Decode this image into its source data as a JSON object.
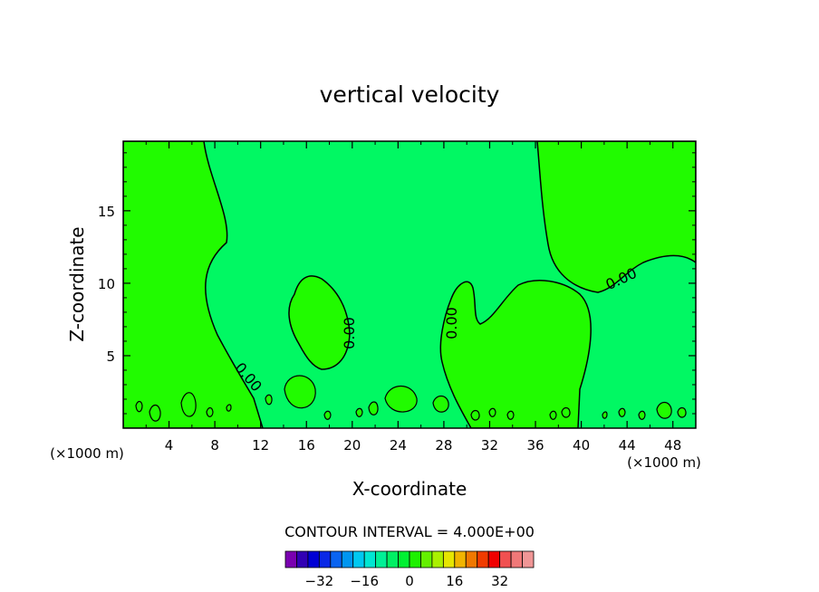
{
  "chart_data": {
    "type": "contour",
    "title": "vertical velocity",
    "xlabel": "X-coordinate",
    "ylabel": "Z-coordinate",
    "x_unit_left": "(×1000 m)",
    "x_unit_right": "(×1000 m)",
    "xlim": [
      0,
      50
    ],
    "ylim": [
      0,
      19.8
    ],
    "x_ticks": [
      4,
      8,
      12,
      16,
      20,
      24,
      28,
      32,
      36,
      40,
      44,
      48
    ],
    "y_ticks": [
      5,
      10,
      15
    ],
    "contour_labels": [
      "0.00",
      "0.00",
      "0.00",
      "0.00"
    ],
    "contour_interval_text": "CONTOUR INTERVAL = 4.000E+00",
    "colorbar_ticks": [
      -32,
      -16,
      0,
      16,
      32
    ],
    "colorbar_colors": [
      "#7a00b0",
      "#3200b4",
      "#0000d4",
      "#0a28e6",
      "#0a64f0",
      "#0096f0",
      "#00c8f0",
      "#00e6d2",
      "#00f096",
      "#00f064",
      "#00f032",
      "#1ef000",
      "#64f000",
      "#aaf000",
      "#e6e600",
      "#f0b400",
      "#f07800",
      "#f03c00",
      "#f00000",
      "#f05050",
      "#f07878",
      "#f09696"
    ],
    "colors": {
      "positive_fill": "#21fb00",
      "near_zero_fill": "#01f863",
      "contour_line": "#000000"
    }
  }
}
